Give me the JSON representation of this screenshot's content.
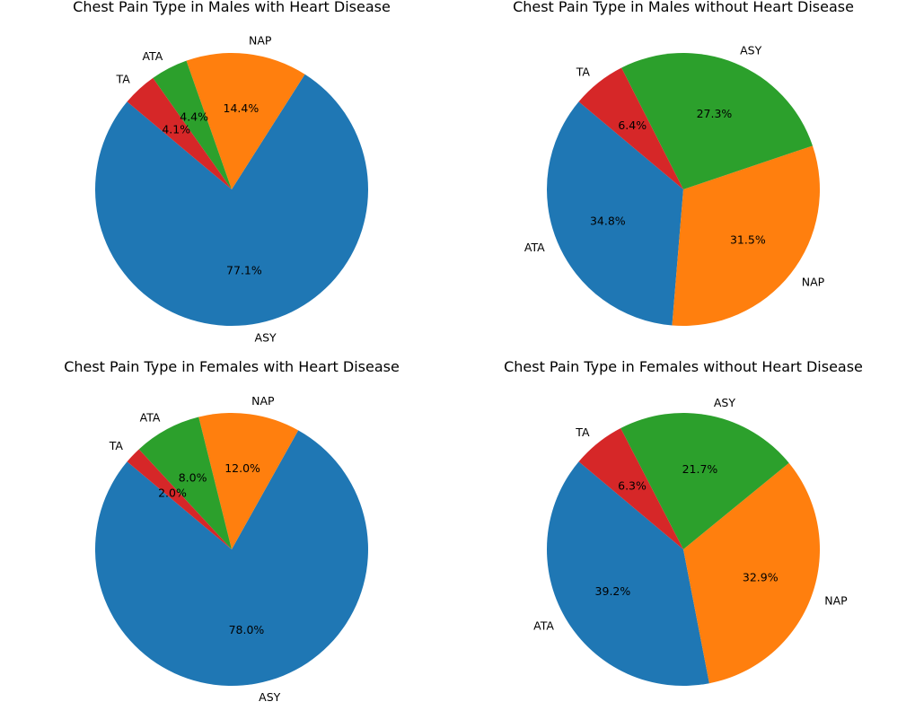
{
  "colors": {
    "ASY": "#1f77b4",
    "NAP": "#ff7f0e",
    "ATA": "#2ca02c",
    "TA": "#d62728",
    "ATA_blue": "#1f77b4",
    "NAP_orange": "#ff7f0e",
    "ASY_green": "#2ca02c",
    "TA_red": "#d62728"
  },
  "chart_data": [
    {
      "type": "pie",
      "title": "Chest Pain Type in Males with Heart Disease",
      "categories": [
        "ASY",
        "NAP",
        "ATA",
        "TA"
      ],
      "values": [
        77.1,
        14.4,
        4.4,
        4.1
      ],
      "labels": [
        "77.1%",
        "14.4%",
        "4.4%",
        "4.1%"
      ],
      "colors": [
        "#1f77b4",
        "#ff7f0e",
        "#2ca02c",
        "#d62728"
      ],
      "startangle": 140
    },
    {
      "type": "pie",
      "title": "Chest Pain Type in Males without Heart Disease",
      "categories": [
        "ATA",
        "NAP",
        "ASY",
        "TA"
      ],
      "values": [
        34.8,
        31.5,
        27.3,
        6.4
      ],
      "labels": [
        "34.8%",
        "31.5%",
        "27.3%",
        "6.4%"
      ],
      "colors": [
        "#1f77b4",
        "#ff7f0e",
        "#2ca02c",
        "#d62728"
      ],
      "startangle": 140
    },
    {
      "type": "pie",
      "title": "Chest Pain Type in Females with Heart Disease",
      "categories": [
        "ASY",
        "NAP",
        "ATA",
        "TA"
      ],
      "values": [
        78.0,
        12.0,
        8.0,
        2.0
      ],
      "labels": [
        "78.0%",
        "12.0%",
        "8.0%",
        "2.0%"
      ],
      "colors": [
        "#1f77b4",
        "#ff7f0e",
        "#2ca02c",
        "#d62728"
      ],
      "startangle": 140
    },
    {
      "type": "pie",
      "title": "Chest Pain Type in Females without Heart Disease",
      "categories": [
        "ATA",
        "NAP",
        "ASY",
        "TA"
      ],
      "values": [
        39.2,
        32.9,
        21.7,
        6.3
      ],
      "labels": [
        "39.2%",
        "32.9%",
        "21.7%",
        "6.3%"
      ],
      "colors": [
        "#1f77b4",
        "#ff7f0e",
        "#2ca02c",
        "#d62728"
      ],
      "startangle": 140
    }
  ]
}
